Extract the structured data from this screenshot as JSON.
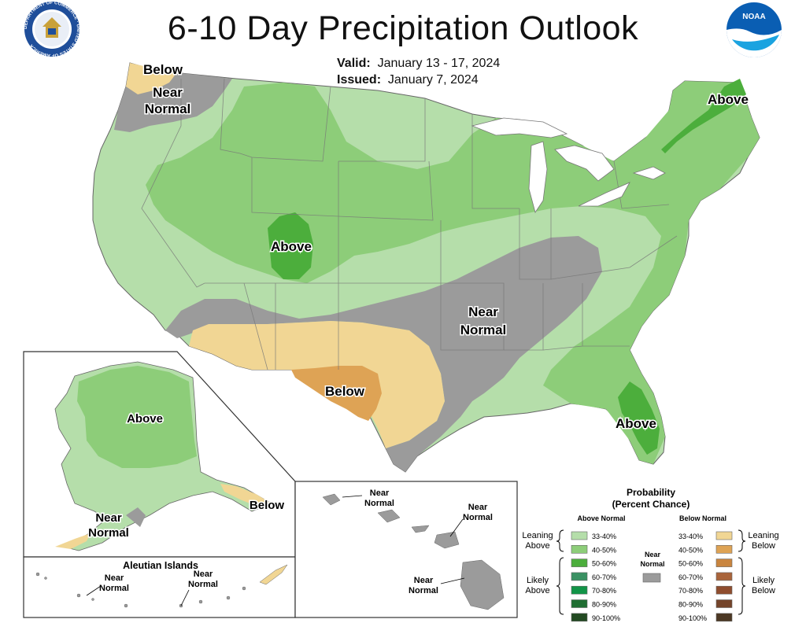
{
  "header": {
    "title": "6-10 Day Precipitation Outlook",
    "valid_label": "Valid:",
    "valid_value": "January 13 - 17, 2024",
    "issued_label": "Issued:",
    "issued_value": "January 7, 2024",
    "left_seal_text": "DEPARTMENT OF COMMERCE · UNITED STATES OF AMERICA",
    "right_logo_text": "NOAA"
  },
  "map_labels": {
    "pnw_below": "Below",
    "pnw_near_1": "Near",
    "pnw_near_2": "Normal",
    "ne_above": "Above",
    "central_above": "Above",
    "south_near_1": "Near",
    "south_near_2": "Normal",
    "texas_below": "Below",
    "florida_above": "Above"
  },
  "alaska": {
    "above": "Above",
    "below": "Below",
    "near_1": "Near",
    "near_2": "Normal"
  },
  "aleutians": {
    "title": "Aleutian Islands",
    "near_a_1": "Near",
    "near_a_2": "Normal",
    "near_b_1": "Near",
    "near_b_2": "Normal"
  },
  "hawaii": {
    "near_1_1": "Near",
    "near_1_2": "Normal",
    "near_2_1": "Near",
    "near_2_2": "Normal",
    "near_3_1": "Near",
    "near_3_2": "Normal"
  },
  "legend": {
    "title_1": "Probability",
    "title_2": "(Percent Chance)",
    "above_header": "Above Normal",
    "below_header": "Below Normal",
    "near_1": "Near",
    "near_2": "Normal",
    "leaning_above_1": "Leaning",
    "leaning_above_2": "Above",
    "likely_above_1": "Likely",
    "likely_above_2": "Above",
    "leaning_below_1": "Leaning",
    "leaning_below_2": "Below",
    "likely_below_1": "Likely",
    "likely_below_2": "Below",
    "above_ranges": [
      "33-40%",
      "40-50%",
      "50-60%",
      "60-70%",
      "70-80%",
      "80-90%",
      "90-100%"
    ],
    "below_ranges": [
      "33-40%",
      "40-50%",
      "50-60%",
      "60-70%",
      "70-80%",
      "80-90%",
      "90-100%"
    ],
    "above_colors": [
      "#b5deaa",
      "#8dcd79",
      "#4cae3c",
      "#3a9163",
      "#119447",
      "#1f6e32",
      "#234a22"
    ],
    "below_colors": [
      "#f1d694",
      "#dea355",
      "#c9853f",
      "#a9643b",
      "#8f4d2e",
      "#74442a",
      "#4c3824"
    ],
    "near_color": "#9b9b9b"
  },
  "colors": {
    "above_33_40": "#b5deaa",
    "above_40_50": "#8dcd79",
    "above_50_60": "#4cae3c",
    "below_33_40": "#f1d694",
    "below_40_50": "#dea355",
    "near_normal": "#9b9b9b"
  }
}
